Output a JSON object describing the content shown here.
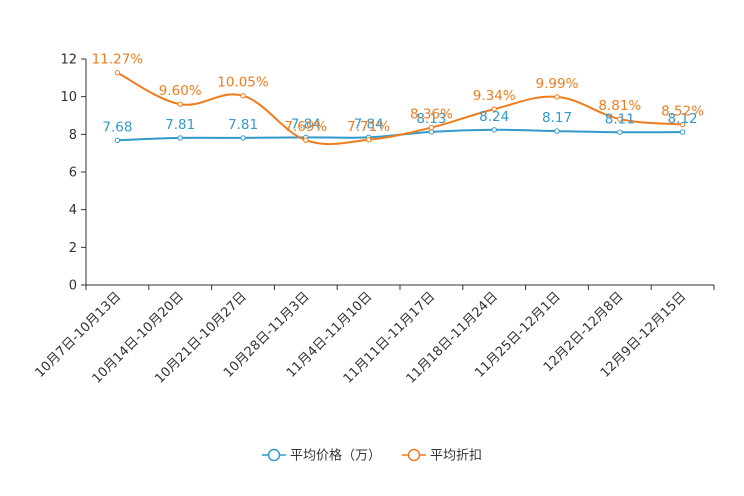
{
  "chart_data": {
    "type": "line",
    "title": "",
    "xlabel": "",
    "ylabel": "",
    "ylim": [
      0,
      12
    ],
    "yticks": [
      0,
      2,
      4,
      6,
      8,
      10,
      12
    ],
    "grid": false,
    "legend_position": "bottom",
    "categories": [
      "10月7日-10月13日",
      "10月14日-10月20日",
      "10月21日-10月27日",
      "10月28日-11月3日",
      "11月4日-11月10日",
      "11月11日-11月17日",
      "11月18日-11月24日",
      "11月25日-12月1日",
      "12月2日-12月8日",
      "12月9日-12月15日"
    ],
    "series": [
      {
        "name": "平均价格（万）",
        "color": "#3399cc",
        "values": [
          7.68,
          7.81,
          7.81,
          7.84,
          7.84,
          8.13,
          8.24,
          8.17,
          8.11,
          8.12
        ],
        "labels": [
          "7.68",
          "7.81",
          "7.81",
          "7.84",
          "7.84",
          "8.13",
          "8.24",
          "8.17",
          "8.11",
          "8.12"
        ]
      },
      {
        "name": "平均折扣",
        "color": "#f27c1c",
        "values": [
          11.27,
          9.6,
          10.05,
          7.69,
          7.71,
          8.36,
          9.34,
          9.99,
          8.81,
          8.52
        ],
        "labels": [
          "11.27%",
          "9.60%",
          "10.05%",
          "7.69%",
          "7.71%",
          "8.36%",
          "9.34%",
          "9.99%",
          "8.81%",
          "8.52%"
        ]
      }
    ]
  }
}
